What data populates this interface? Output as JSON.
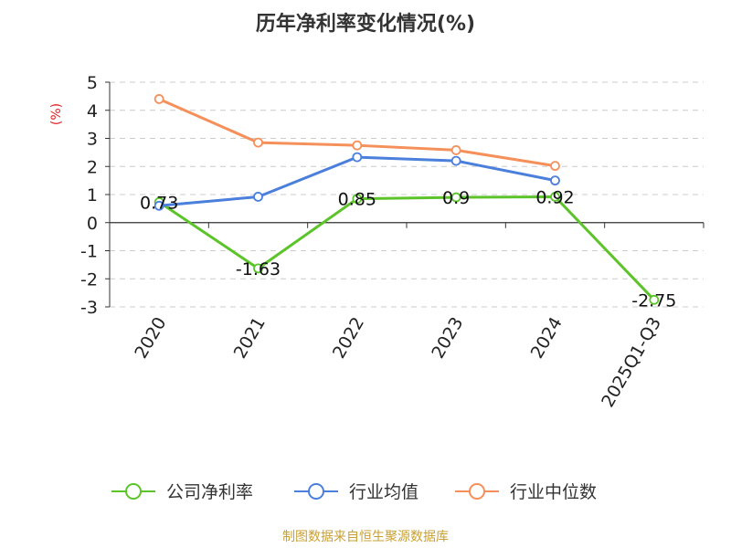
{
  "chart_data": {
    "type": "line",
    "title": "历年净利率变化情况(%)",
    "ylabel": "(%)",
    "xlabel": "",
    "ylim": [
      -3,
      5
    ],
    "yticks": [
      5,
      4,
      3,
      2,
      1,
      0,
      -1,
      -2,
      -3
    ],
    "categories": [
      "2020",
      "2021",
      "2022",
      "2023",
      "2024",
      "2025Q1-Q3"
    ],
    "grid": true,
    "legend_position": "bottom",
    "series": [
      {
        "name": "公司净利率",
        "color": "#5cc42a",
        "values": [
          0.73,
          -1.63,
          0.85,
          0.9,
          0.92,
          -2.75
        ],
        "labels": [
          "0.73",
          "-1.63",
          "0.85",
          "0.9",
          "0.92",
          "-2.75"
        ]
      },
      {
        "name": "行业均值",
        "color": "#4a7fdc",
        "values": [
          0.6,
          0.92,
          2.33,
          2.2,
          1.5,
          null
        ]
      },
      {
        "name": "行业中位数",
        "color": "#f5905a",
        "values": [
          4.4,
          2.85,
          2.75,
          2.58,
          2.02,
          null
        ]
      }
    ]
  },
  "source_text": "制图数据来自恒生聚源数据库",
  "colors": {
    "axis": "#333333",
    "grid": "#cccccc",
    "ylabel": "#e02020"
  }
}
